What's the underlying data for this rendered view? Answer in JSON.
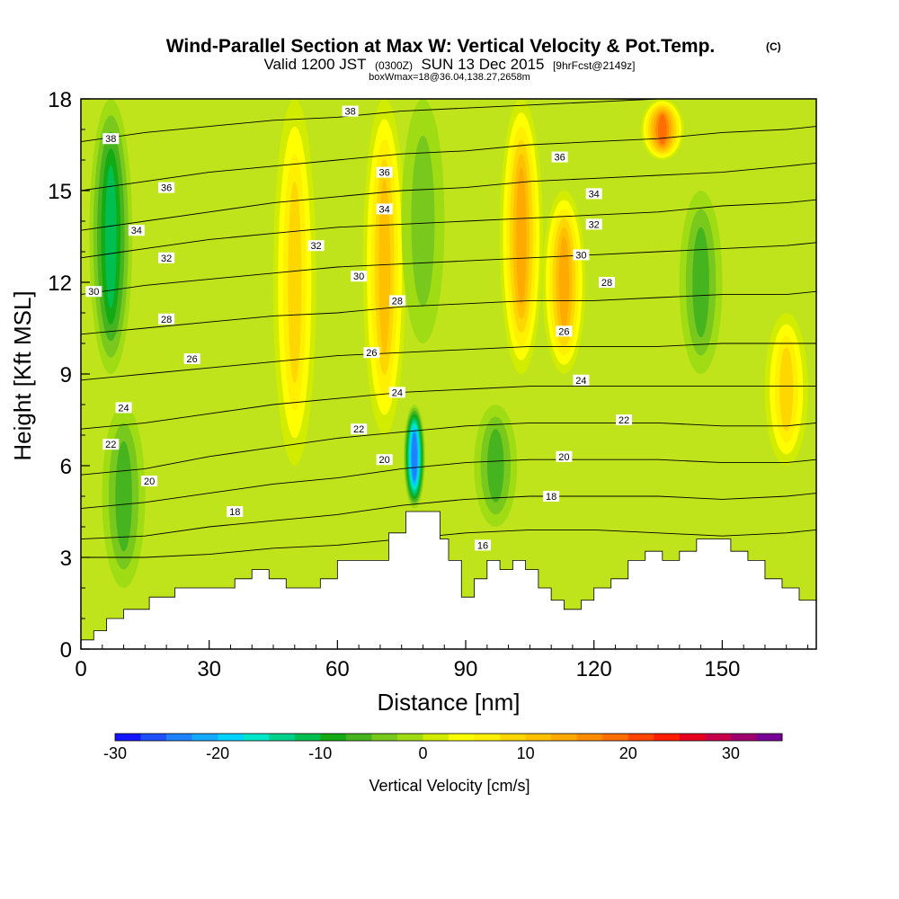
{
  "header": {
    "title": "Wind-Parallel Section at Max W: Vertical Velocity & Pot.Temp.",
    "copyright": "(C)",
    "valid_prefix": "Valid 1200 JST",
    "valid_utc": "(0300Z)",
    "valid_date": "SUN 13 Dec 2015",
    "forecast": "[9hrFcst@2149z]",
    "box_info": "boxWmax=18@36.04,138.27,2658m"
  },
  "chart_data": {
    "type": "heatmap",
    "xlabel": "Distance [nm]",
    "ylabel": "Height [Kft MSL]",
    "xlim": [
      0,
      172
    ],
    "ylim": [
      0,
      18
    ],
    "xticks": [
      0,
      30,
      60,
      90,
      120,
      150
    ],
    "yticks": [
      0,
      3,
      6,
      9,
      12,
      15,
      18
    ],
    "fill_variable": "Vertical Velocity [cm/s]",
    "contour_variable": "Potential temperature",
    "colorbar": {
      "label": "Vertical Velocity [cm/s]",
      "ticks": [
        -30,
        -20,
        -10,
        0,
        10,
        20,
        30
      ],
      "levels": [
        -30,
        -27.5,
        -25,
        -22.5,
        -20,
        -17.5,
        -15,
        -12.5,
        -10,
        -7.5,
        -5,
        -2.5,
        0,
        2.5,
        5,
        7.5,
        10,
        12.5,
        15,
        17.5,
        20,
        22.5,
        25,
        27.5,
        30,
        32.5,
        35
      ],
      "colors": [
        "#1414ff",
        "#1e50ff",
        "#1e82ff",
        "#14aaff",
        "#00d2ff",
        "#00e6c8",
        "#00d28c",
        "#00be50",
        "#14aa14",
        "#46b41e",
        "#78c81e",
        "#a0dc14",
        "#d2ec00",
        "#ffff00",
        "#fff000",
        "#ffd700",
        "#ffc000",
        "#ffaa00",
        "#ff8c00",
        "#ff6e00",
        "#ff4600",
        "#ff1e00",
        "#e6001e",
        "#c8004b",
        "#a0006e",
        "#780096"
      ]
    },
    "velocity_features": [
      {
        "x": 7,
        "z_min": 9,
        "z_max": 18,
        "w": -12
      },
      {
        "x": 10,
        "z_min": 2,
        "z_max": 8,
        "w": -8
      },
      {
        "x": 50,
        "z_min": 6,
        "z_max": 18,
        "w": 10
      },
      {
        "x": 71,
        "z_min": 7,
        "z_max": 18,
        "w": 12
      },
      {
        "x": 78,
        "z_min": 4.6,
        "z_max": 8,
        "w": -25
      },
      {
        "x": 80,
        "z_min": 10,
        "z_max": 18,
        "w": -6
      },
      {
        "x": 97,
        "z_min": 4,
        "z_max": 8,
        "w": -8
      },
      {
        "x": 103,
        "z_min": 9,
        "z_max": 18,
        "w": 14
      },
      {
        "x": 113,
        "z_min": 9,
        "z_max": 15,
        "w": 16
      },
      {
        "x": 136,
        "z_min": 16,
        "z_max": 18,
        "w": 20
      },
      {
        "x": 145,
        "z_min": 9,
        "z_max": 15,
        "w": -8
      },
      {
        "x": 165,
        "z_min": 6,
        "z_max": 11,
        "w": 10
      }
    ],
    "terrain_x": [
      0,
      3,
      6,
      10,
      16,
      22,
      28,
      36,
      40,
      44,
      48,
      52,
      56,
      60,
      64,
      68,
      72,
      76,
      80,
      84,
      86,
      89,
      92,
      95,
      98,
      101,
      104,
      107,
      110,
      113,
      117,
      120,
      124,
      128,
      132,
      136,
      140,
      144,
      148,
      152,
      156,
      160,
      164,
      168,
      172
    ],
    "terrain_z": [
      0.3,
      0.6,
      1.0,
      1.3,
      1.7,
      2.0,
      2.0,
      2.3,
      2.6,
      2.3,
      2.0,
      2.0,
      2.3,
      2.9,
      2.9,
      2.9,
      3.8,
      4.5,
      4.5,
      3.6,
      2.9,
      1.7,
      2.3,
      2.9,
      2.6,
      2.9,
      2.6,
      2.0,
      1.6,
      1.3,
      1.6,
      2.0,
      2.3,
      2.9,
      3.2,
      2.9,
      3.2,
      3.6,
      3.6,
      3.2,
      2.9,
      2.3,
      2.0,
      1.6,
      1.6
    ],
    "theta_contours": [
      {
        "level": 16,
        "z": [
          3.0,
          3.0,
          3.1,
          3.3,
          3.4,
          3.6,
          3.8,
          3.9,
          3.9,
          3.8,
          3.7,
          3.8,
          3.9
        ]
      },
      {
        "level": 18,
        "z": [
          3.6,
          3.7,
          4.0,
          4.2,
          4.4,
          4.7,
          4.9,
          5.0,
          5.0,
          5.0,
          4.9,
          5.0,
          5.1
        ]
      },
      {
        "level": 20,
        "z": [
          4.6,
          4.8,
          5.1,
          5.4,
          5.6,
          5.9,
          6.1,
          6.2,
          6.2,
          6.2,
          6.1,
          6.1,
          6.2
        ]
      },
      {
        "level": 22,
        "z": [
          5.7,
          5.9,
          6.3,
          6.6,
          6.9,
          7.1,
          7.3,
          7.4,
          7.4,
          7.4,
          7.3,
          7.3,
          7.4
        ]
      },
      {
        "level": 24,
        "z": [
          7.2,
          7.4,
          7.7,
          8.0,
          8.2,
          8.4,
          8.5,
          8.6,
          8.6,
          8.6,
          8.6,
          8.6,
          8.6
        ]
      },
      {
        "level": 26,
        "z": [
          8.8,
          9.0,
          9.2,
          9.4,
          9.6,
          9.7,
          9.8,
          9.9,
          9.9,
          9.9,
          10.0,
          10.0,
          10.0
        ]
      },
      {
        "level": 28,
        "z": [
          10.3,
          10.5,
          10.7,
          10.9,
          11.0,
          11.2,
          11.3,
          11.4,
          11.4,
          11.5,
          11.6,
          11.6,
          11.7
        ]
      },
      {
        "level": 30,
        "z": [
          11.6,
          11.9,
          12.1,
          12.3,
          12.5,
          12.6,
          12.7,
          12.8,
          12.9,
          13.0,
          13.1,
          13.2,
          13.3
        ]
      },
      {
        "level": 32,
        "z": [
          12.8,
          13.1,
          13.4,
          13.6,
          13.8,
          13.9,
          14.0,
          14.1,
          14.2,
          14.3,
          14.5,
          14.6,
          14.7
        ]
      },
      {
        "level": 34,
        "z": [
          13.7,
          14.0,
          14.3,
          14.6,
          14.8,
          15.0,
          15.1,
          15.3,
          15.4,
          15.5,
          15.6,
          15.8,
          15.9
        ]
      },
      {
        "level": 36,
        "z": [
          15.0,
          15.3,
          15.6,
          15.8,
          16.0,
          16.2,
          16.3,
          16.5,
          16.6,
          16.7,
          16.9,
          17.0,
          17.1
        ]
      },
      {
        "level": 38,
        "z": [
          16.6,
          16.9,
          17.1,
          17.3,
          17.4,
          17.6,
          17.7,
          17.8,
          17.9,
          18.0,
          18.0,
          18.0,
          18.0
        ]
      }
    ],
    "contour_x": [
      0,
      15,
      30,
      45,
      60,
      75,
      90,
      105,
      120,
      135,
      150,
      165,
      172
    ],
    "contour_labels": [
      {
        "text": "38",
        "x": 7,
        "z": 16.7
      },
      {
        "text": "38",
        "x": 63,
        "z": 17.6
      },
      {
        "text": "36",
        "x": 20,
        "z": 15.1
      },
      {
        "text": "36",
        "x": 71,
        "z": 15.6
      },
      {
        "text": "36",
        "x": 112,
        "z": 16.1
      },
      {
        "text": "34",
        "x": 13,
        "z": 13.7
      },
      {
        "text": "34",
        "x": 71,
        "z": 14.4
      },
      {
        "text": "34",
        "x": 120,
        "z": 14.9
      },
      {
        "text": "32",
        "x": 20,
        "z": 12.8
      },
      {
        "text": "32",
        "x": 55,
        "z": 13.2
      },
      {
        "text": "32",
        "x": 120,
        "z": 13.9
      },
      {
        "text": "30",
        "x": 3,
        "z": 11.7
      },
      {
        "text": "30",
        "x": 65,
        "z": 12.2
      },
      {
        "text": "30",
        "x": 117,
        "z": 12.9
      },
      {
        "text": "28",
        "x": 20,
        "z": 10.8
      },
      {
        "text": "28",
        "x": 74,
        "z": 11.4
      },
      {
        "text": "28",
        "x": 123,
        "z": 12.0
      },
      {
        "text": "26",
        "x": 26,
        "z": 9.5
      },
      {
        "text": "26",
        "x": 68,
        "z": 9.7
      },
      {
        "text": "26",
        "x": 113,
        "z": 10.4
      },
      {
        "text": "24",
        "x": 10,
        "z": 7.9
      },
      {
        "text": "24",
        "x": 74,
        "z": 8.4
      },
      {
        "text": "24",
        "x": 117,
        "z": 8.8
      },
      {
        "text": "22",
        "x": 7,
        "z": 6.7
      },
      {
        "text": "22",
        "x": 65,
        "z": 7.2
      },
      {
        "text": "22",
        "x": 127,
        "z": 7.5
      },
      {
        "text": "20",
        "x": 16,
        "z": 5.5
      },
      {
        "text": "20",
        "x": 71,
        "z": 6.2
      },
      {
        "text": "20",
        "x": 113,
        "z": 6.3
      },
      {
        "text": "18",
        "x": 36,
        "z": 4.5
      },
      {
        "text": "18",
        "x": 110,
        "z": 5.0
      },
      {
        "text": "16",
        "x": 94,
        "z": 3.4
      }
    ]
  }
}
